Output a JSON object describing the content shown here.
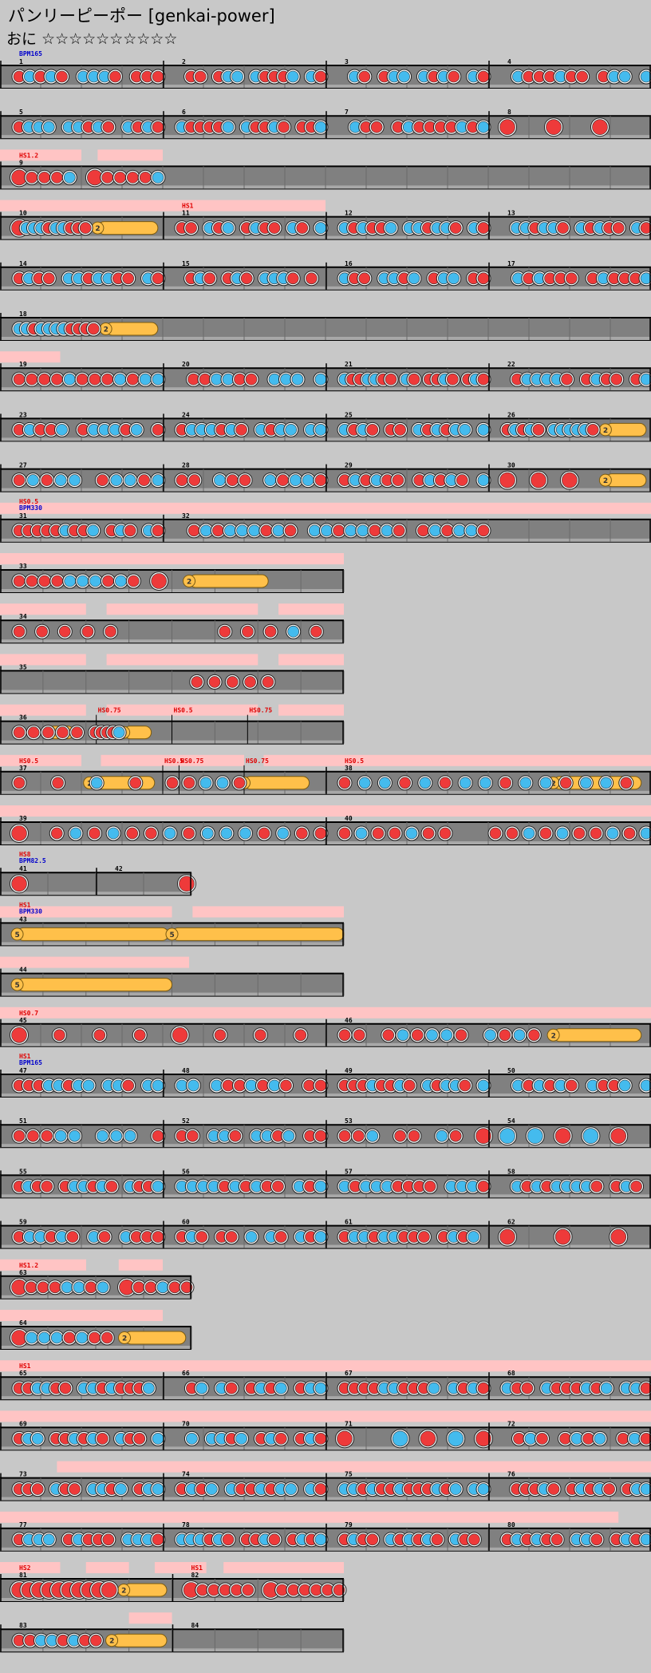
{
  "song": {
    "title": "パンリーピーポー [genkai-power]",
    "difficulty": "おに ☆☆☆☆☆☆☆☆☆☆"
  },
  "colors": {
    "don": "#ee3a3a",
    "ka": "#44bbee",
    "roll": "#ffc04a",
    "lane": "#808080",
    "scroll_band": "#ffc4c4",
    "bg": "#c8c8c8"
  },
  "rows": [
    {
      "measures": [
        {
          "n": "1",
          "bpm": "BPM165",
          "notes": "dkdkd0kkkd0ddd"
        },
        {
          "n": "2",
          "notes": "0dd0dkk0kdddk0kd"
        },
        {
          "n": "3",
          "notes": "0kd0dkk0kdkd0kd"
        },
        {
          "n": "4",
          "notes": "0kdddkdd0dkk0k"
        }
      ]
    },
    {
      "measures": [
        {
          "n": "5",
          "notes": "dkkk0kkdkd0kdkd"
        },
        {
          "n": "6",
          "notes": "kddddk0kddkd0ddk"
        },
        {
          "n": "7",
          "notes": "0kdd0dkddddkdk"
        },
        {
          "n": "8",
          "notes": "D0D0D00"
        }
      ]
    },
    {
      "bands": [
        [
          0,
          0.5
        ],
        [
          0.6,
          1
        ]
      ],
      "measures": [
        {
          "n": "9",
          "hs": "HS1.2",
          "notes": "Ddddk0Dddddk",
          "w": 1
        }
      ]
    },
    {
      "bands": [
        [
          0,
          1
        ],
        [
          1,
          2
        ]
      ],
      "measures": [
        {
          "n": "10",
          "notes": "Dkkkdkkddd",
          "roll": {
            "from": 0.6,
            "to": 0.97,
            "c": "2"
          }
        },
        {
          "n": "11",
          "hs": "HS1",
          "notes": "dd0kdk0dkdd0kd0k"
        },
        {
          "n": "12",
          "notes": "kdkddk0kkdkkd0kd"
        },
        {
          "n": "13",
          "notes": "0kkdkkd0kdkdd0kd"
        }
      ]
    },
    {
      "measures": [
        {
          "n": "14",
          "notes": "dkdd0kkdkkdd0kd"
        },
        {
          "n": "15",
          "notes": "0dkd0dkd0kkkd0d0"
        },
        {
          "n": "16",
          "notes": "kdd0kkdk0dkk0dd"
        },
        {
          "n": "17",
          "notes": "0kdkddd0dkdddk"
        }
      ]
    },
    {
      "measures": [
        {
          "n": "18",
          "notes": "kkdkkkkdddd",
          "roll": {
            "from": 0.65,
            "to": 0.97,
            "c": "2"
          },
          "w": 1
        }
      ]
    },
    {
      "bands": [
        [
          0,
          0.37
        ]
      ],
      "measures": [
        {
          "n": "19",
          "notes": "ddddkdddkdkk"
        },
        {
          "n": "20",
          "notes": "0ddkkdd0kkk0k"
        },
        {
          "n": "21",
          "notes": "kddkkdd0kd0ddkd0dkd"
        },
        {
          "n": "22",
          "notes": "0dkkkkd0dkdd0dk"
        }
      ]
    },
    {
      "measures": [
        {
          "n": "23",
          "notes": "dkddk0dkkkdk0d"
        },
        {
          "n": "24",
          "notes": "dkkkdkd0kdkk0kk"
        },
        {
          "n": "25",
          "notes": "kdkd0dd0kdkdkk0k"
        },
        {
          "n": "26",
          "notes": "dkdkd0kkkkkd",
          "roll": {
            "from": 0.72,
            "to": 0.97,
            "c": "2"
          }
        }
      ]
    },
    {
      "measures": [
        {
          "n": "27",
          "notes": "dkdkk0dkkdk"
        },
        {
          "n": "28",
          "notes": "dd0kdd0kdkkd"
        },
        {
          "n": "29",
          "notes": "dkdkdd0dkdkd0k"
        },
        {
          "n": "30",
          "notes": "D0D0D0",
          "roll": {
            "from": 0.72,
            "to": 0.97,
            "c": "2"
          }
        }
      ]
    },
    {
      "bands": [
        [
          0,
          4
        ]
      ],
      "measures": [
        {
          "n": "31",
          "hs": "HS0.5",
          "bpm": "BPM330",
          "notes": "dddddkddk0dkd0kd"
        },
        {
          "n": "32",
          "notes": "0dkdkkkdkd0kkdkkdkd0dkdkkd",
          "span": 2
        }
      ]
    },
    {
      "bands": [
        [
          0,
          2
        ]
      ],
      "w": 2,
      "measures": [
        {
          "n": "33",
          "notes": "ddddkkkdkd0D0",
          "roll": {
            "from": 0.55,
            "to": 0.78,
            "c": "2"
          },
          "span": 2
        }
      ]
    },
    {
      "bands": [
        [
          0,
          0.5
        ],
        [
          0.62,
          1.5
        ],
        [
          1.62,
          2
        ]
      ],
      "w": 2,
      "measures": [
        {
          "n": "34",
          "notes": "ddddd0000dddkd0",
          "span": 2
        }
      ]
    },
    {
      "bands": [
        [
          0,
          0.5
        ],
        [
          0.62,
          1.5
        ],
        [
          1.62,
          2
        ]
      ],
      "w": 2,
      "measures": [
        {
          "n": "35",
          "notes": "0000000000ddddd0000",
          "span": 2
        }
      ]
    },
    {
      "bands": [
        [
          0,
          0.5
        ],
        [
          0.62,
          1.5
        ],
        [
          1.62,
          2
        ]
      ],
      "w": 2,
      "measures": [
        {
          "n": "36",
          "notes": "ddddd",
          "span": 2,
          "roll": {
            "from": 0.28,
            "to": 0.43,
            "c": "2"
          },
          "extra": [
            {
              "hs": "HS0.75",
              "at": 0.28
            },
            {
              "hs": "HS0.5",
              "at": 0.5
            },
            {
              "hs": "HS0.75",
              "at": 0.72
            }
          ],
          "rolls": [
            {
              "from": 0.72,
              "to": 0.88,
              "c": "2"
            }
          ],
          "notes2": [
            {
              "s": "ddddk",
              "from": 0.5,
              "to": 0.72
            }
          ]
        }
      ]
    },
    {
      "bands": [
        [
          0,
          0.5
        ],
        [
          0.62,
          1.5
        ],
        [
          1.62,
          4
        ]
      ],
      "measures": [
        {
          "n": "37",
          "hs": "HS0.5",
          "notes": "ddkd",
          "roll": {
            "from": 0.55,
            "to": 0.95,
            "c": "2"
          },
          "extra": [
            {
              "hs": "HS0.75",
              "at": 0.55
            }
          ],
          "notes2": [
            {
              "s": "ddkkd",
              "from": 1.0,
              "to": 1.5
            }
          ],
          "rolls": [
            {
              "from": 1.5,
              "to": 1.9,
              "c": "2"
            }
          ],
          "extra2": [
            {
              "hs": "HS0.5",
              "at": 1.0
            },
            {
              "hs": "HS0.75",
              "at": 1.5
            }
          ],
          "span": 2
        },
        {
          "n": "38",
          "hs": "HS0.5",
          "notes": "dkkdkdkkdkkdkkd",
          "roll": {
            "from": 0.7,
            "to": 0.97,
            "c": "2"
          },
          "span": 2,
          "rollspan": true
        }
      ]
    },
    {
      "bands": [
        [
          0,
          4
        ]
      ],
      "measures": [
        {
          "n": "39",
          "notes": "D0dkdkddkdkkkdkdd",
          "span": 2
        },
        {
          "n": "40",
          "notes": "dkddkdd00ddkdkddkdk",
          "span": 2
        }
      ]
    },
    {
      "w": 1,
      "measures": [
        {
          "n": "41",
          "hs": "HS8",
          "bpm": "BPM82.5",
          "notes": "D0000000",
          "w": 0.5,
          "span": 1
        },
        {
          "n": "42",
          "notes": "000D",
          "w": 0.5,
          "span": 1
        }
      ]
    },
    {
      "bands": [
        [
          0,
          1
        ],
        [
          1.12,
          2
        ]
      ],
      "w": 2,
      "measures": [
        {
          "n": "43",
          "hs": "HS1",
          "bpm": "BPM330",
          "notes": "",
          "span": 2,
          "rolls": [
            {
              "from": 0.1,
              "to": 0.98,
              "c": "5"
            },
            {
              "from": 1.0,
              "to": 2.0,
              "c": "5"
            }
          ]
        }
      ]
    },
    {
      "bands": [
        [
          0,
          1.1
        ]
      ],
      "w": 2,
      "measures": [
        {
          "n": "44",
          "notes": "",
          "span": 2,
          "rolls": [
            {
              "from": 0.1,
              "to": 1.0,
              "c": "5"
            }
          ]
        }
      ]
    },
    {
      "bands": [
        [
          0,
          4
        ]
      ],
      "measures": [
        {
          "n": "45",
          "hs": "HS0.7",
          "notes": "D0d0d0d0D0d0d0d0",
          "span": 2
        },
        {
          "n": "46",
          "notes": "dd0dkdkkd0kdkd",
          "span": 2,
          "roll": {
            "from": 0.7,
            "to": 0.97,
            "c": "2"
          }
        }
      ]
    },
    {
      "measures": [
        {
          "n": "47",
          "hs": "HS1",
          "bpm": "BPM165",
          "notes": "dddkkdkk0kkd0kk"
        },
        {
          "n": "48",
          "notes": "kk0kddkdkd0dd"
        },
        {
          "n": "49",
          "notes": "dddkddkd0kdkkd0k"
        },
        {
          "n": "50",
          "notes": "0kdkdkd0kddk0k"
        }
      ]
    },
    {
      "measures": [
        {
          "n": "51",
          "notes": "dddkk0kkk0d"
        },
        {
          "n": "52",
          "notes": "dd0kkd0kkdk0dd"
        },
        {
          "n": "53",
          "notes": "ddk0dd0kd0D"
        },
        {
          "n": "54",
          "notes": "KKDKD0"
        }
      ]
    },
    {
      "measures": [
        {
          "n": "55",
          "notes": "dkdd0dkkdkd0kddk"
        },
        {
          "n": "56",
          "notes": "kkkkdkdkdd0kdk"
        },
        {
          "n": "57",
          "notes": "kdkkkdddd0kkkd"
        },
        {
          "n": "58",
          "notes": "0kdkdkkkkd0dkd0"
        }
      ]
    },
    {
      "measures": [
        {
          "n": "59",
          "notes": "dkkdkd0kd0kddd"
        },
        {
          "n": "60",
          "notes": "dkd0dd0k0kd0kdk"
        },
        {
          "n": "61",
          "notes": "dkkdkkddd0dkdk0"
        },
        {
          "n": "62",
          "notes": "D0D0D0"
        }
      ]
    },
    {
      "bands": [
        [
          0,
          0.45
        ],
        [
          0.62,
          0.85
        ]
      ],
      "w": 1,
      "measures": [
        {
          "n": "63",
          "hs": "HS1.2",
          "notes": "Ddddkkdk0Dddkdd",
          "w": 1
        }
      ]
    },
    {
      "bands": [
        [
          0,
          0.85
        ]
      ],
      "w": 1,
      "measures": [
        {
          "n": "64",
          "notes": "Dkkkdkdd",
          "roll": {
            "from": 0.65,
            "to": 0.97,
            "c": "2"
          },
          "w": 1
        }
      ]
    },
    {
      "bands": [
        [
          0,
          4
        ]
      ],
      "measures": [
        {
          "n": "65",
          "hs": "HS1",
          "notes": "ddkkdd0kkdkdddk0"
        },
        {
          "n": "66",
          "notes": "0dk0kd0dkdk0dkk"
        },
        {
          "n": "67",
          "notes": "ddddkkdddk0kdkd"
        },
        {
          "n": "68",
          "notes": "kdd0kdddkdk0kkd"
        }
      ]
    },
    {
      "bands": [
        [
          0,
          4
        ]
      ],
      "measures": [
        {
          "n": "69",
          "notes": "dkk0ddkdkd0kdd0k"
        },
        {
          "n": "70",
          "notes": "0k0kkdk0dkd0dkd"
        },
        {
          "n": "71",
          "notes": "D0KDKD"
        },
        {
          "n": "72",
          "notes": "0dkd0dkdk0dkd"
        }
      ]
    },
    {
      "bands": [
        [
          0.35,
          4
        ]
      ],
      "measures": [
        {
          "n": "73",
          "notes": "ddd0kdd0kkdk0dkk"
        },
        {
          "n": "74",
          "notes": "dkdk0kddkdkk0kd"
        },
        {
          "n": "75",
          "notes": "kkdkddkdddkdk0kk"
        },
        {
          "n": "76",
          "notes": "0dddkd0dkdkd0dkk"
        }
      ]
    },
    {
      "bands": [
        [
          0,
          3.8
        ]
      ],
      "measures": [
        {
          "n": "77",
          "notes": "dkkk0dkddd0kkkd"
        },
        {
          "n": "78",
          "notes": "kkkdkd0ddkd0dkdk"
        },
        {
          "n": "79",
          "notes": "dkdd0kdkdkd0kdd0"
        },
        {
          "n": "80",
          "notes": "dkdkdd0kkd0dkdk"
        }
      ]
    },
    {
      "bands": [
        [
          0,
          0.35
        ],
        [
          0.5,
          0.75
        ],
        [
          0.9,
          1.2
        ],
        [
          1.3,
          2
        ]
      ],
      "w": 2,
      "measures": [
        {
          "n": "81",
          "hs": "HS2",
          "notes": "DDDDDDDDDD",
          "w": 1,
          "span": 1,
          "roll": {
            "from": 0.72,
            "to": 0.97,
            "c": "2"
          }
        },
        {
          "n": "82",
          "hs": "HS1",
          "notes": "Dddddd0Ddddddd",
          "w": 1,
          "span": 1
        }
      ]
    },
    {
      "bands": [
        [
          0.75,
          1
        ]
      ],
      "w": 2,
      "measures": [
        {
          "n": "83",
          "notes": "ddkkdkdd",
          "w": 1,
          "span": 1,
          "roll": {
            "from": 0.65,
            "to": 0.97,
            "c": "2"
          }
        },
        {
          "n": "84",
          "notes": "",
          "w": 1,
          "span": 1
        }
      ]
    }
  ]
}
